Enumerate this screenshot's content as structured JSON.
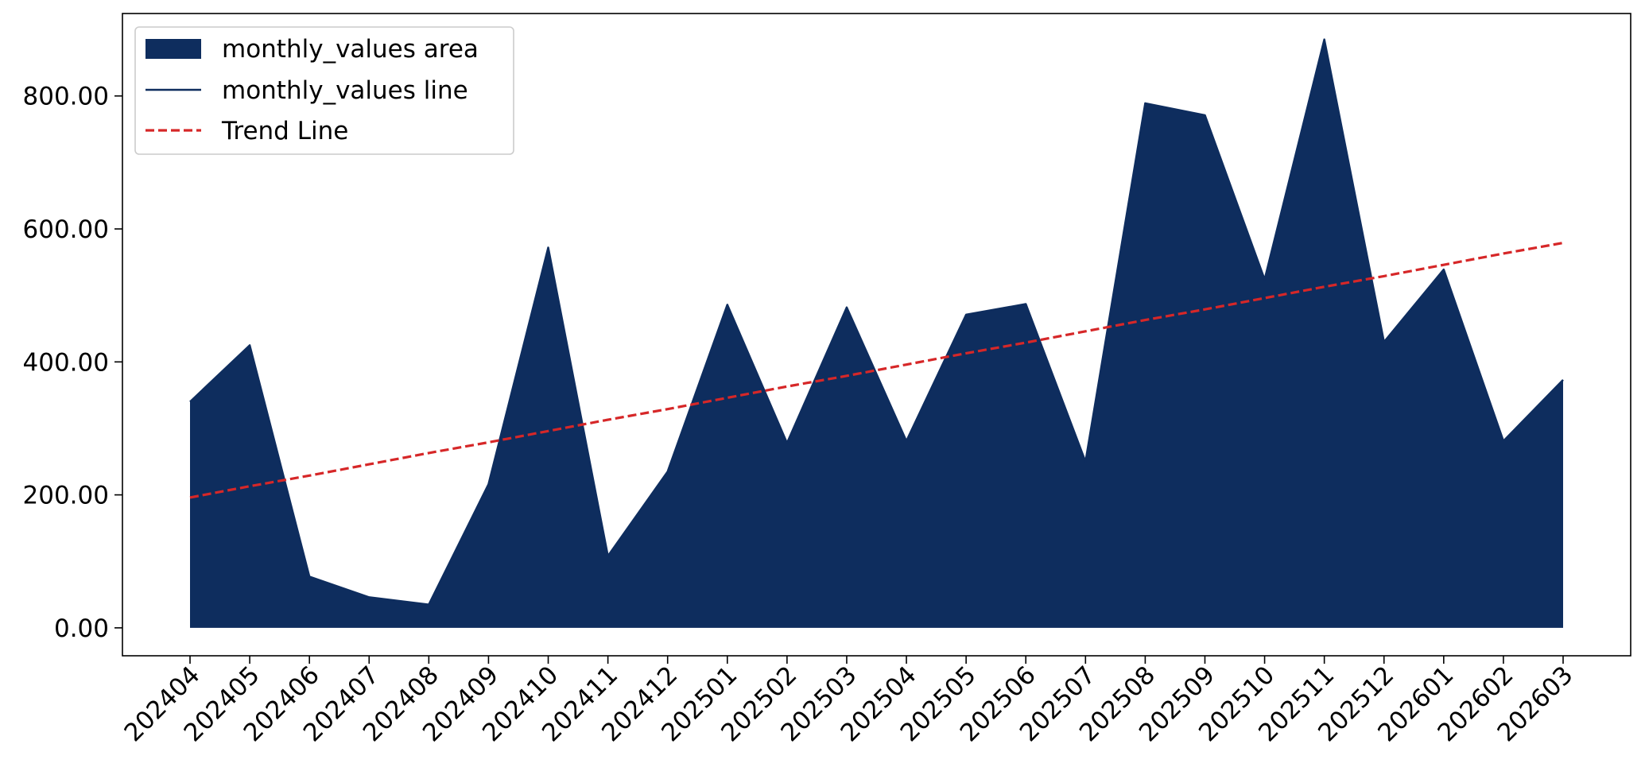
{
  "chart_data": {
    "type": "area",
    "title": "",
    "xlabel": "",
    "ylabel": "",
    "categories": [
      "202404",
      "202405",
      "202406",
      "202407",
      "202408",
      "202409",
      "202410",
      "202411",
      "202412",
      "202501",
      "202502",
      "202503",
      "202504",
      "202505",
      "202506",
      "202507",
      "202508",
      "202509",
      "202510",
      "202511",
      "202512",
      "202601",
      "202602",
      "202603"
    ],
    "series": [
      {
        "name": "monthly_values area",
        "kind": "area",
        "color": "#0e2d5e",
        "values": [
          340,
          425,
          77,
          46,
          35,
          216,
          572,
          108,
          235,
          486,
          278,
          482,
          281,
          471,
          487,
          250,
          789,
          771,
          524,
          885,
          430,
          539,
          281,
          373
        ]
      },
      {
        "name": "monthly_values line",
        "kind": "line",
        "color": "#0e2d5e",
        "values": [
          340,
          425,
          77,
          46,
          35,
          216,
          572,
          108,
          235,
          486,
          278,
          482,
          281,
          471,
          487,
          250,
          789,
          771,
          524,
          885,
          430,
          539,
          281,
          373
        ]
      },
      {
        "name": "Trend Line",
        "kind": "dashed-line",
        "color": "#d62728",
        "values": [
          196,
          213,
          229,
          246,
          263,
          279,
          296,
          313,
          329,
          346,
          363,
          379,
          396,
          413,
          429,
          446,
          463,
          479,
          496,
          513,
          529,
          546,
          563,
          579
        ]
      }
    ],
    "yticks": [
      0,
      200,
      400,
      600,
      800
    ],
    "ytick_labels": [
      "0.00",
      "200.00",
      "400.00",
      "600.00",
      "800.00"
    ],
    "ylim": [
      -42,
      924
    ],
    "grid": false,
    "legend_position": "top-left"
  }
}
